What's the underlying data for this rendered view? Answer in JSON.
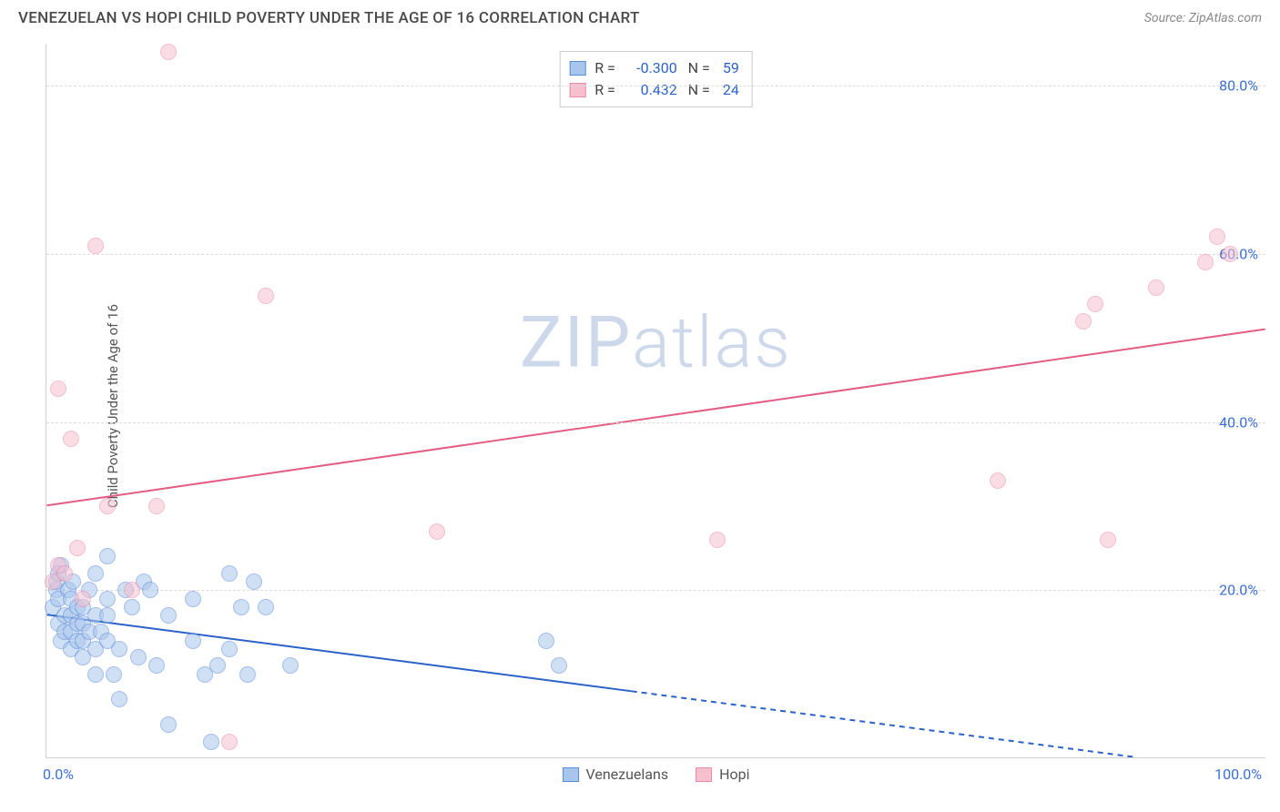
{
  "header": {
    "title": "VENEZUELAN VS HOPI CHILD POVERTY UNDER THE AGE OF 16 CORRELATION CHART",
    "source_prefix": "Source: ",
    "source_name": "ZipAtlas.com"
  },
  "watermark": {
    "part1": "ZIP",
    "part2": "atlas"
  },
  "chart": {
    "type": "scatter",
    "background_color": "#ffffff",
    "grid_color": "#dcdcdc",
    "axis_color": "#d0d0d0",
    "ylabel": "Child Poverty Under the Age of 16",
    "ylabel_fontsize": 15,
    "ylabel_color": "#555555",
    "tick_color": "#3b6fd6",
    "tick_fontsize": 16,
    "xlim": [
      0,
      100
    ],
    "ylim": [
      0,
      85
    ],
    "yticks": [
      20,
      40,
      60,
      80
    ],
    "ytick_labels": [
      "20.0%",
      "40.0%",
      "60.0%",
      "80.0%"
    ],
    "xticks": [
      0,
      100
    ],
    "xtick_labels": [
      "0.0%",
      "100.0%"
    ],
    "point_radius": 9,
    "point_border_width": 1,
    "series": [
      {
        "name": "Venezuelans",
        "color_fill": "#a8c5ec",
        "color_border": "#5a8cd8",
        "fill_opacity": 0.55,
        "R": "-0.300",
        "N": "59",
        "trend": {
          "x1": 0,
          "y1": 17,
          "x2": 100,
          "y2": -2,
          "color": "#2b62c9",
          "width": 2,
          "solid_until_x": 48
        },
        "points": [
          [
            0.5,
            18
          ],
          [
            0.8,
            20
          ],
          [
            0.8,
            21
          ],
          [
            1,
            16
          ],
          [
            1,
            19
          ],
          [
            1,
            22
          ],
          [
            1.2,
            14
          ],
          [
            1.2,
            23
          ],
          [
            1.5,
            17
          ],
          [
            1.5,
            15
          ],
          [
            1.8,
            20
          ],
          [
            2,
            13
          ],
          [
            2,
            15
          ],
          [
            2,
            17
          ],
          [
            2,
            19
          ],
          [
            2.2,
            21
          ],
          [
            2.5,
            14
          ],
          [
            2.5,
            16
          ],
          [
            2.5,
            18
          ],
          [
            3,
            12
          ],
          [
            3,
            14
          ],
          [
            3,
            16
          ],
          [
            3,
            18
          ],
          [
            3.5,
            20
          ],
          [
            3.5,
            15
          ],
          [
            4,
            10
          ],
          [
            4,
            13
          ],
          [
            4,
            17
          ],
          [
            4,
            22
          ],
          [
            4.5,
            15
          ],
          [
            5,
            14
          ],
          [
            5,
            17
          ],
          [
            5,
            19
          ],
          [
            5,
            24
          ],
          [
            5.5,
            10
          ],
          [
            6,
            7
          ],
          [
            6,
            13
          ],
          [
            6.5,
            20
          ],
          [
            7,
            18
          ],
          [
            7.5,
            12
          ],
          [
            8,
            21
          ],
          [
            8.5,
            20
          ],
          [
            9,
            11
          ],
          [
            10,
            4
          ],
          [
            10,
            17
          ],
          [
            12,
            14
          ],
          [
            12,
            19
          ],
          [
            13,
            10
          ],
          [
            13.5,
            2
          ],
          [
            14,
            11
          ],
          [
            15,
            13
          ],
          [
            15,
            22
          ],
          [
            16,
            18
          ],
          [
            16.5,
            10
          ],
          [
            17,
            21
          ],
          [
            18,
            18
          ],
          [
            20,
            11
          ],
          [
            41,
            14
          ],
          [
            42,
            11
          ]
        ]
      },
      {
        "name": "Hopi",
        "color_fill": "#f6c0cf",
        "color_border": "#e98aa8",
        "fill_opacity": 0.55,
        "R": "0.432",
        "N": "24",
        "trend": {
          "x1": 0,
          "y1": 30,
          "x2": 100,
          "y2": 51,
          "color": "#e35d84",
          "width": 2,
          "solid_until_x": 100
        },
        "points": [
          [
            0.5,
            21
          ],
          [
            1,
            23
          ],
          [
            1,
            44
          ],
          [
            1.5,
            22
          ],
          [
            2,
            38
          ],
          [
            2.5,
            25
          ],
          [
            3,
            19
          ],
          [
            4,
            61
          ],
          [
            5,
            30
          ],
          [
            7,
            20
          ],
          [
            9,
            30
          ],
          [
            10,
            84
          ],
          [
            15,
            2
          ],
          [
            18,
            55
          ],
          [
            32,
            27
          ],
          [
            55,
            26
          ],
          [
            78,
            33
          ],
          [
            85,
            52
          ],
          [
            86,
            54
          ],
          [
            87,
            26
          ],
          [
            91,
            56
          ],
          [
            95,
            59
          ],
          [
            96,
            62
          ],
          [
            97,
            60
          ]
        ]
      }
    ]
  },
  "stat_legend": {
    "R_label": "R =",
    "N_label": "N ="
  },
  "series_legend_title": ""
}
